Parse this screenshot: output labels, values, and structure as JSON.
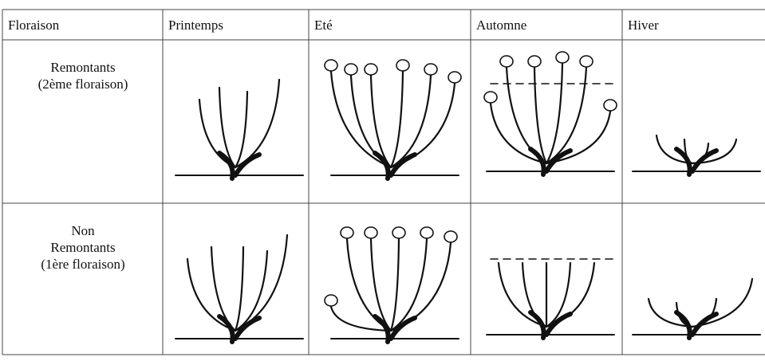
{
  "header": [
    "Floraison",
    "Printemps",
    "Eté",
    "Automne",
    "Hiver"
  ],
  "rows": [
    {
      "label": [
        "Remontants",
        "(2ème floraison)"
      ]
    },
    {
      "label": [
        "Non",
        "Remontants",
        "(1ère floraison)"
      ]
    }
  ]
}
